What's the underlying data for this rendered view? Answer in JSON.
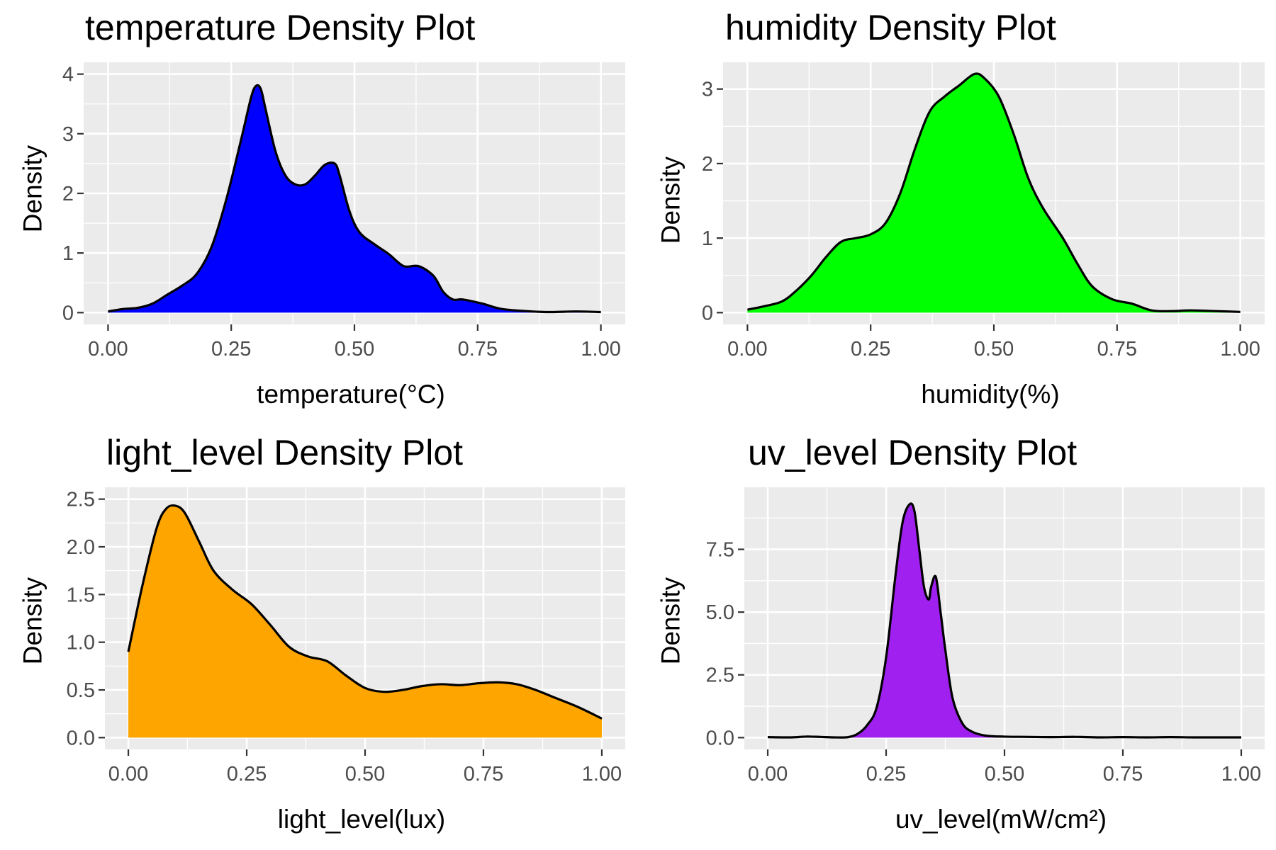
{
  "chart_data": [
    {
      "type": "area",
      "title": "temperature Density Plot",
      "xlabel": "temperature(°C)",
      "ylabel": "Density",
      "fill_color": "#0000FF",
      "xlim": [
        0,
        1
      ],
      "ylim": [
        0,
        4
      ],
      "x_ticks": [
        0,
        0.25,
        0.5,
        0.75,
        1
      ],
      "x_tick_labels": [
        "0.00",
        "0.25",
        "0.50",
        "0.75",
        "1.00"
      ],
      "y_ticks": [
        0,
        1,
        2,
        3,
        4
      ],
      "y_tick_labels": [
        "0",
        "1",
        "2",
        "3",
        "4"
      ],
      "x": [
        0.0,
        0.03,
        0.06,
        0.09,
        0.12,
        0.15,
        0.18,
        0.21,
        0.24,
        0.27,
        0.29,
        0.3,
        0.31,
        0.32,
        0.34,
        0.36,
        0.38,
        0.4,
        0.42,
        0.44,
        0.46,
        0.47,
        0.49,
        0.51,
        0.54,
        0.57,
        0.6,
        0.63,
        0.66,
        0.68,
        0.7,
        0.72,
        0.76,
        0.8,
        0.86,
        0.9,
        0.95,
        1.0
      ],
      "y": [
        0.02,
        0.06,
        0.08,
        0.15,
        0.3,
        0.45,
        0.65,
        1.1,
        1.9,
        2.9,
        3.6,
        3.8,
        3.75,
        3.4,
        2.7,
        2.3,
        2.15,
        2.15,
        2.3,
        2.48,
        2.5,
        2.3,
        1.7,
        1.35,
        1.15,
        0.98,
        0.78,
        0.78,
        0.62,
        0.35,
        0.22,
        0.22,
        0.15,
        0.06,
        0.02,
        0.01,
        0.02,
        0.01
      ]
    },
    {
      "type": "area",
      "title": "humidity Density Plot",
      "xlabel": "humidity(%)",
      "ylabel": "Density",
      "fill_color": "#00FF00",
      "xlim": [
        0,
        1
      ],
      "ylim": [
        0,
        3.2
      ],
      "x_ticks": [
        0,
        0.25,
        0.5,
        0.75,
        1
      ],
      "x_tick_labels": [
        "0.00",
        "0.25",
        "0.50",
        "0.75",
        "1.00"
      ],
      "y_ticks": [
        0,
        1,
        2,
        3
      ],
      "y_tick_labels": [
        "0",
        "1",
        "2",
        "3"
      ],
      "x": [
        0.0,
        0.03,
        0.07,
        0.1,
        0.13,
        0.16,
        0.19,
        0.22,
        0.25,
        0.28,
        0.31,
        0.34,
        0.37,
        0.4,
        0.43,
        0.46,
        0.48,
        0.51,
        0.54,
        0.57,
        0.6,
        0.64,
        0.67,
        0.7,
        0.74,
        0.78,
        0.82,
        0.86,
        0.9,
        0.95,
        1.0
      ],
      "y": [
        0.04,
        0.08,
        0.15,
        0.3,
        0.5,
        0.75,
        0.95,
        1.0,
        1.05,
        1.2,
        1.6,
        2.2,
        2.7,
        2.9,
        3.05,
        3.2,
        3.15,
        2.9,
        2.4,
        1.8,
        1.4,
        1.0,
        0.65,
        0.35,
        0.18,
        0.12,
        0.03,
        0.02,
        0.03,
        0.02,
        0.01
      ]
    },
    {
      "type": "area",
      "title": "light_level Density Plot",
      "xlabel": "light_level(lux)",
      "ylabel": "Density",
      "fill_color": "#FFA500",
      "xlim": [
        0,
        1
      ],
      "ylim": [
        0,
        2.5
      ],
      "x_ticks": [
        0,
        0.25,
        0.5,
        0.75,
        1
      ],
      "x_tick_labels": [
        "0.00",
        "0.25",
        "0.50",
        "0.75",
        "1.00"
      ],
      "y_ticks": [
        0,
        0.5,
        1,
        1.5,
        2,
        2.5
      ],
      "y_tick_labels": [
        "0.0",
        "0.5",
        "1.0",
        "1.5",
        "2.0",
        "2.5"
      ],
      "x": [
        0.0,
        0.03,
        0.06,
        0.08,
        0.1,
        0.12,
        0.15,
        0.18,
        0.22,
        0.26,
        0.3,
        0.34,
        0.38,
        0.42,
        0.46,
        0.5,
        0.54,
        0.58,
        0.62,
        0.66,
        0.7,
        0.74,
        0.78,
        0.82,
        0.86,
        0.9,
        0.95,
        1.0
      ],
      "y": [
        0.9,
        1.6,
        2.2,
        2.4,
        2.43,
        2.35,
        2.05,
        1.75,
        1.55,
        1.4,
        1.18,
        0.95,
        0.85,
        0.8,
        0.65,
        0.52,
        0.48,
        0.5,
        0.54,
        0.56,
        0.55,
        0.57,
        0.58,
        0.56,
        0.5,
        0.42,
        0.32,
        0.2
      ]
    },
    {
      "type": "area",
      "title": "uv_level Density Plot",
      "xlabel": "uv_level(mW/cm²)",
      "ylabel": "Density",
      "fill_color": "#A020F0",
      "xlim": [
        0,
        1
      ],
      "ylim": [
        0,
        9.5
      ],
      "x_ticks": [
        0,
        0.25,
        0.5,
        0.75,
        1
      ],
      "x_tick_labels": [
        "0.00",
        "0.25",
        "0.50",
        "0.75",
        "1.00"
      ],
      "y_ticks": [
        0,
        2.5,
        5,
        7.5
      ],
      "y_tick_labels": [
        "0.0",
        "2.5",
        "5.0",
        "7.5"
      ],
      "x": [
        0.0,
        0.05,
        0.08,
        0.11,
        0.14,
        0.17,
        0.19,
        0.21,
        0.23,
        0.25,
        0.27,
        0.285,
        0.3,
        0.31,
        0.32,
        0.33,
        0.34,
        0.345,
        0.355,
        0.365,
        0.375,
        0.39,
        0.41,
        0.43,
        0.46,
        0.5,
        0.55,
        0.6,
        0.65,
        0.7,
        0.75,
        0.8,
        0.85,
        0.9,
        0.95,
        1.0
      ],
      "y": [
        0.02,
        0.01,
        0.04,
        0.03,
        0.01,
        0.02,
        0.15,
        0.5,
        1.2,
        3.2,
        6.5,
        8.6,
        9.3,
        9.0,
        7.5,
        6.0,
        5.5,
        6.0,
        6.4,
        5.0,
        3.5,
        1.6,
        0.6,
        0.25,
        0.08,
        0.04,
        0.03,
        0.02,
        0.03,
        0.01,
        0.02,
        0.01,
        0.02,
        0.01,
        0.01,
        0.01
      ]
    }
  ]
}
